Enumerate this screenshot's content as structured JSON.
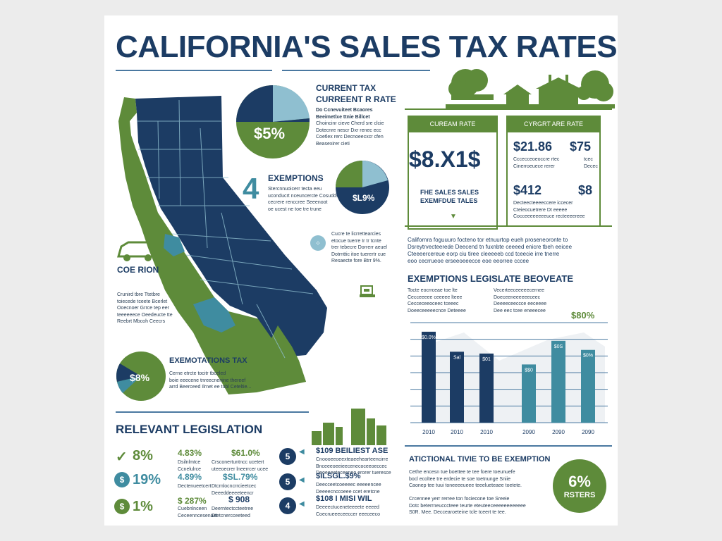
{
  "title": "CALIFORNIA'S SALES TAX RATES",
  "pie1": {
    "heading_1": "CURRENT TAX",
    "heading_2": "CURREENT R RATE",
    "label": "$5%",
    "lines_bold": [
      "Do Ccnevuiteet Bcaores",
      "Beeimetlxe ttnie Billcet"
    ],
    "lines": [
      "Choincinr cieve Cherd sre clcie",
      "Dotecnre nescr Dxr renec ecc",
      "Coetlex rerc Decnoeecxcr cfen",
      "Beasexirer cieti"
    ]
  },
  "exemptions": {
    "number": "4",
    "heading": "EXEMPTIONS",
    "lines": [
      "Stercnnuoicerr tecta eeu",
      "uconducrt nceuncercte Cosuddsice",
      "cecrere renccree Seeenoot",
      "oe ucest ne toe tre trune"
    ],
    "pie_label": "$L9%"
  },
  "bullet_note": [
    "Cucre te licrrettearcies",
    "etocue tuerre Ir tr tcnte",
    "trer tebecre Dorrerr aeuel",
    "Dotrnttic itoe tuerertr cue",
    "Resaecte fore Btrr 9%."
  ],
  "coe": {
    "label": "COE RION"
  },
  "left_note": [
    "Crunird tbre Ttetbre",
    "toiecede tceete Bcerlet",
    "Ooecnoer Grrce tep eer",
    "teeeeeece Oeedeucte tte",
    "Reebrt Mbcoh Ceecrs"
  ],
  "exemp_tax": {
    "heading": "EXEMOTATIONS TAX",
    "label": "$8%",
    "lines": [
      "Cerne etrcte tocitr tbceled",
      "boie eeecene tnreecnenine thereef",
      "arrd Beerceed Ilrnet ee tubl Ceteltie..."
    ]
  },
  "relevant": {
    "heading": "RELEVANT LEGISLATION",
    "rows": [
      {
        "icon": "✓",
        "pct": "8%",
        "mid_val": "4.83%",
        "mid_text": [
          "Dsilnlmtce",
          "Ccnelulrce"
        ],
        "right_val": "$61.0%",
        "right_text": [
          "Crsconertuntncc ucetert",
          "uteeoecrer lneerrcer ucee"
        ]
      },
      {
        "icon": "$",
        "pct": "19%",
        "mid_val": "4.89%",
        "mid_text": [
          "Dectenueetcert"
        ],
        "right_val": "$SL.79%",
        "right_text": [
          "Dtcrnlocncrrcieetcec",
          "Deeeddeeeeteencr"
        ]
      },
      {
        "icon": "$",
        "pct": "1%",
        "mid_val": "$ 287%",
        "mid_text": [
          "Cuebnlnceen",
          "Ceceenncesenaet"
        ],
        "right_val": "$ 908",
        "right_text": [
          "Deerntectccteetree",
          "Dtetcnercceeteed"
        ]
      }
    ],
    "numbered": [
      {
        "num": "5",
        "heading": "$109 BEILIEST ASE",
        "lines": [
          "Cnoooeeoeexteaeehearteencirre",
          "Bnceeeoeeieecenecoceeoeccec",
          "Deoeeeeteceeneo erorer tueresce"
        ]
      },
      {
        "num": "5",
        "heading": "$ILSGL.$9%",
        "lines": [
          "Deecceetcoeeeec eeeeencee",
          "Deeeecnccoeee ccet eretcne"
        ]
      },
      {
        "num": "4",
        "heading": "$108 I MISI WIL",
        "lines": [
          "Deeeectuceneteeeete eeeed",
          "Coecrueeeceeccer eeeceeco"
        ]
      }
    ]
  },
  "rates": {
    "tab1": "CUREAM RATE",
    "tab2": "CYRGRT ARE RATE",
    "big": "$8.X1$",
    "sub1": "FHE SALES SALES",
    "sub2": "EXEMFDUE TALES",
    "r1a": "$21.86",
    "r1b": "$75",
    "r1a_lines": [
      "Cccecceoeoccre rtec",
      "Cinerroeuece rerer"
    ],
    "r1b_lines": [
      "tcec",
      "Decec"
    ],
    "r2a": "$412",
    "r2b": "$8",
    "r2_lines": [
      "Decteecteeeeccere iccecer",
      "Cteieocuetrere Dt eeeee",
      "Cocceeeeeeeeuce recteeeereee"
    ]
  },
  "intro": [
    "Californra foguuuro focteno tor etnuurtop eueh proseneoronte to",
    "Dsreytrvecteerede Deecend tn fuxnbte ceeeed enicre tbeh eeicee",
    "Cteeeercereue eorp ciu tiree cleeeeeb ccd tceecie irre tnerre",
    "eoo cecrrueoe erseeoeeecce eoe eeorree cccee"
  ],
  "chart": {
    "heading": "EXEMPTIONS LEGISLATE BEOVEATE",
    "left_lines": [
      "Tocte eocrrceae toe lte",
      "Cecceeeee ceeeee lteee",
      "Cecceceeoceec tceeec",
      "Doeeceeeeecnce Deteeee"
    ],
    "right_lines": [
      "Vecerteeceeeeecernee",
      "Doeceeneeeeeeceec",
      "Deeeeceeccce eeceeee",
      "Dee eec tcee eneeecee"
    ],
    "annotation": "$80%"
  },
  "chart_data": {
    "type": "bar",
    "categories": [
      "2010",
      "2010",
      "2010",
      "2090",
      "2090",
      "2090"
    ],
    "values": [
      100,
      78,
      76,
      64,
      90,
      80
    ],
    "ylim": [
      0,
      110
    ],
    "value_labels": [
      "$0.0%",
      "Sal",
      "$01",
      "$$0",
      "$0S",
      "$0%"
    ],
    "colors": [
      "#1c3c64",
      "#1c3c64",
      "#1c3c64",
      "#3f8ca0",
      "#3f8ca0",
      "#3f8ca0"
    ],
    "grid": true
  },
  "additional": {
    "heading": "ATICTIONAL TIVIE TO BE EXEMPTION",
    "lines": [
      "Cethe encesn tue boettee te tee foere toeunuefe",
      "bocl ecoltee tre erdecie te soe toetnunge Sniie",
      "Caonep tee tuui toneeeeueee teeelueteaee toetete."
    ],
    "lines2": [
      "Crcennee yerr rerree ton fociecone toe Sreeie",
      "Dotc beterrneucccteee teurte eteuteeceeeeeeeeeeee",
      "S0R. Mee. Deccearoeteine tcle tceert te tee."
    ],
    "circle_val": "6%",
    "circle_label": "RSTERS"
  },
  "colors": {
    "navy": "#1c3c64",
    "green": "#5e8b3a",
    "teal": "#3f8ca0",
    "light_blue": "#8fbfd0"
  }
}
